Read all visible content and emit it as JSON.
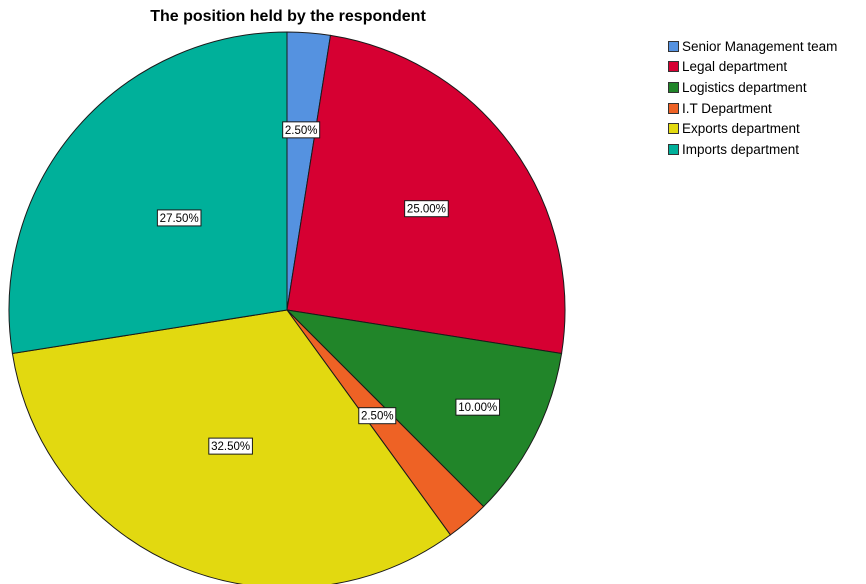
{
  "chart_data": {
    "type": "pie",
    "title": "The position held by the respondent",
    "legend_position": "right",
    "slices": [
      {
        "label": "Senior Management team",
        "value": 2.5,
        "display": "2.50%",
        "color": "#5592e0"
      },
      {
        "label": "Legal department",
        "value": 25.0,
        "display": "25.00%",
        "color": "#d60032"
      },
      {
        "label": "Logistics department",
        "value": 10.0,
        "display": "10.00%",
        "color": "#218529"
      },
      {
        "label": "I.T Department",
        "value": 2.5,
        "display": "2.50%",
        "color": "#ee6225"
      },
      {
        "label": "Exports department",
        "value": 32.5,
        "display": "32.50%",
        "color": "#e2d910"
      },
      {
        "label": "Imports department",
        "value": 27.5,
        "display": "27.50%",
        "color": "#00b09a"
      }
    ]
  }
}
